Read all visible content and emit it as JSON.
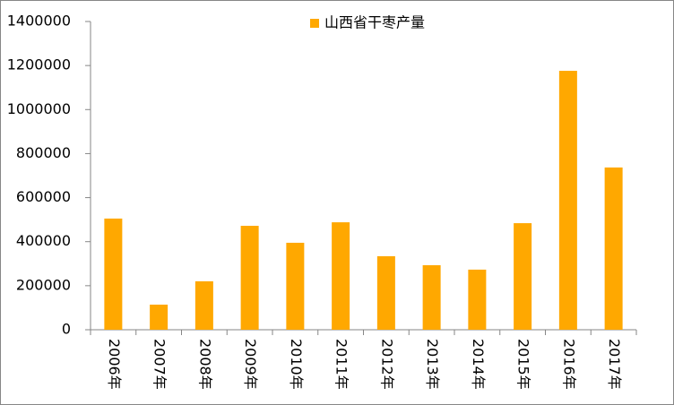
{
  "chart_data": {
    "type": "bar",
    "categories": [
      "2006年",
      "2007年",
      "2008年",
      "2009年",
      "2010年",
      "2011年",
      "2012年",
      "2013年",
      "2014年",
      "2015年",
      "2016年",
      "2017年"
    ],
    "series": [
      {
        "name": "山西省干枣产量",
        "color": "#ffa800",
        "values": [
          505000,
          114000,
          220000,
          472000,
          395000,
          488000,
          334000,
          293000,
          273000,
          484000,
          1176000,
          737000
        ]
      }
    ],
    "ylim": [
      0,
      1400000
    ],
    "yticks": [
      0,
      200000,
      400000,
      600000,
      800000,
      1000000,
      1200000,
      1400000
    ],
    "grid": false
  }
}
